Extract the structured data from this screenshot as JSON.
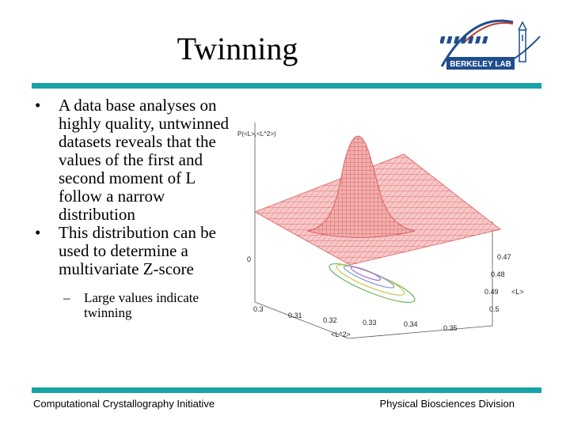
{
  "slide": {
    "title": "Twinning",
    "bullets": [
      "A data base analyses on highly quality, untwinned datasets reveals that the values of the first and second moment of L follow a narrow distribution",
      "This distribution can be used to determine a multivariate Z-score"
    ],
    "sub_bullet": "Large values indicate twinning"
  },
  "logo": {
    "text": "BERKELEY LAB",
    "color": "#1f4e8c"
  },
  "plot": {
    "z_axis_label": "P(<L>,<L^2>)",
    "z_tick": "0",
    "x_axis_label": "<L^2>",
    "x_ticks": [
      "0.3",
      "0.31",
      "0.32",
      "0.33",
      "0.34",
      "0.35"
    ],
    "y_axis_label": "<L>",
    "y_ticks": [
      "0.47",
      "0.48",
      "0.49",
      "0.5"
    ],
    "surface_color": "#e05a5a"
  },
  "footer": {
    "left": "Computational Crystallography Initiative",
    "right": "Physical Biosciences Division"
  },
  "theme": {
    "rule_color": "#17a3a5"
  }
}
